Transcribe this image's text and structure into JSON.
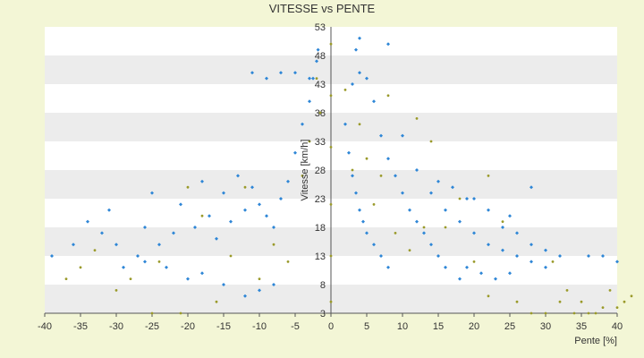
{
  "chart_data": {
    "type": "scatter",
    "title": "VITESSE vs PENTE",
    "xlabel": "Pente [%]",
    "ylabel": "Vitesse [km/h]",
    "xlim": [
      -40,
      40
    ],
    "ylim": [
      3,
      53
    ],
    "xticks": [
      "-40",
      "-35",
      "-30",
      "-25",
      "-20",
      "-15",
      "-10",
      "-5",
      "0",
      "5",
      "10",
      "15",
      "20",
      "25",
      "30",
      "35",
      "40"
    ],
    "yticks": [
      "3",
      "8",
      "13",
      "18",
      "23",
      "28",
      "33",
      "38",
      "43",
      "48",
      "53"
    ],
    "grid": "horizontal alternating bands",
    "legend": "none",
    "colors": {
      "series_main": "#2e86d6",
      "series_sparse": "#9a9a2a",
      "band": "#ececec",
      "plot_bg": "#ffffff",
      "axis": "#555555"
    },
    "series": [
      {
        "marker": "diamond",
        "color": "#2e86d6",
        "points": [
          [
            -39,
            13
          ],
          [
            -36,
            15
          ],
          [
            -34,
            19
          ],
          [
            -32,
            17
          ],
          [
            -31,
            21
          ],
          [
            -30,
            15
          ],
          [
            -29,
            11
          ],
          [
            -27,
            13
          ],
          [
            -26,
            18
          ],
          [
            -25,
            24
          ],
          [
            -24,
            15
          ],
          [
            -22,
            17
          ],
          [
            -21,
            22
          ],
          [
            -19,
            18
          ],
          [
            -18,
            26
          ],
          [
            -17,
            20
          ],
          [
            -16,
            16
          ],
          [
            -15,
            24
          ],
          [
            -14,
            19
          ],
          [
            -13,
            27
          ],
          [
            -12,
            21
          ],
          [
            -11,
            25
          ],
          [
            -10,
            22
          ],
          [
            -9,
            20
          ],
          [
            -8,
            18
          ],
          [
            -7,
            23
          ],
          [
            -6,
            26
          ],
          [
            -5,
            31
          ],
          [
            -4,
            36
          ],
          [
            -3,
            40
          ],
          [
            -2.5,
            44
          ],
          [
            -2,
            47
          ],
          [
            -1.8,
            49
          ],
          [
            -11,
            45
          ],
          [
            -9,
            44
          ],
          [
            -7,
            45
          ],
          [
            -5,
            45
          ],
          [
            -3,
            44
          ],
          [
            -8,
            8
          ],
          [
            -10,
            7
          ],
          [
            -12,
            6
          ],
          [
            -15,
            8
          ],
          [
            -18,
            10
          ],
          [
            -20,
            9
          ],
          [
            -23,
            11
          ],
          [
            -26,
            12
          ],
          [
            2,
            36
          ],
          [
            2.5,
            31
          ],
          [
            3,
            27
          ],
          [
            3.5,
            24
          ],
          [
            4,
            21
          ],
          [
            4.5,
            19
          ],
          [
            5,
            17
          ],
          [
            6,
            15
          ],
          [
            7,
            13
          ],
          [
            8,
            11
          ],
          [
            3,
            43
          ],
          [
            3.5,
            49
          ],
          [
            4,
            45
          ],
          [
            5,
            44
          ],
          [
            6,
            40
          ],
          [
            7,
            34
          ],
          [
            8,
            30
          ],
          [
            9,
            27
          ],
          [
            10,
            24
          ],
          [
            11,
            21
          ],
          [
            12,
            19
          ],
          [
            13,
            17
          ],
          [
            14,
            15
          ],
          [
            15,
            13
          ],
          [
            16,
            11
          ],
          [
            18,
            9
          ],
          [
            10,
            34
          ],
          [
            12,
            28
          ],
          [
            14,
            24
          ],
          [
            16,
            21
          ],
          [
            18,
            19
          ],
          [
            20,
            17
          ],
          [
            22,
            15
          ],
          [
            24,
            14
          ],
          [
            26,
            13
          ],
          [
            28,
            12
          ],
          [
            30,
            11
          ],
          [
            20,
            23
          ],
          [
            22,
            21
          ],
          [
            24,
            18
          ],
          [
            26,
            17
          ],
          [
            28,
            15
          ],
          [
            30,
            14
          ],
          [
            32,
            13
          ],
          [
            36,
            13
          ],
          [
            38,
            13
          ],
          [
            40,
            12
          ],
          [
            8,
            50
          ],
          [
            4,
            51
          ],
          [
            15,
            26
          ],
          [
            17,
            25
          ],
          [
            19,
            23
          ],
          [
            28,
            25
          ],
          [
            25,
            20
          ],
          [
            19,
            11
          ],
          [
            21,
            10
          ],
          [
            23,
            9
          ],
          [
            25,
            10
          ]
        ]
      },
      {
        "marker": "dot",
        "color": "#9a9a2a",
        "points": [
          [
            -37,
            9
          ],
          [
            -35,
            11
          ],
          [
            -33,
            14
          ],
          [
            -30,
            7
          ],
          [
            -28,
            9
          ],
          [
            -25,
            3
          ],
          [
            -24,
            12
          ],
          [
            -21,
            3
          ],
          [
            -20,
            25
          ],
          [
            -18,
            20
          ],
          [
            -16,
            5
          ],
          [
            -14,
            13
          ],
          [
            -12,
            25
          ],
          [
            -10,
            9
          ],
          [
            -8,
            15
          ],
          [
            -6,
            12
          ],
          [
            -4,
            27
          ],
          [
            -3,
            33
          ],
          [
            -2,
            44
          ],
          [
            -1.5,
            38
          ],
          [
            0,
            5
          ],
          [
            0,
            13
          ],
          [
            0,
            22
          ],
          [
            0,
            32
          ],
          [
            0,
            41
          ],
          [
            0,
            50
          ],
          [
            2,
            42
          ],
          [
            3,
            28
          ],
          [
            4,
            36
          ],
          [
            5,
            30
          ],
          [
            6,
            22
          ],
          [
            7,
            27
          ],
          [
            9,
            17
          ],
          [
            11,
            14
          ],
          [
            12,
            37
          ],
          [
            13,
            18
          ],
          [
            16,
            18
          ],
          [
            18,
            23
          ],
          [
            20,
            12
          ],
          [
            22,
            6
          ],
          [
            24,
            19
          ],
          [
            26,
            5
          ],
          [
            28,
            3
          ],
          [
            30,
            3
          ],
          [
            32,
            5
          ],
          [
            34,
            3
          ],
          [
            36,
            3
          ],
          [
            38,
            4
          ],
          [
            39,
            7
          ],
          [
            40,
            4
          ],
          [
            41,
            5
          ],
          [
            42,
            6
          ],
          [
            31,
            12
          ],
          [
            33,
            7
          ],
          [
            35,
            5
          ],
          [
            37,
            3
          ],
          [
            22,
            27
          ],
          [
            14,
            33
          ],
          [
            8,
            41
          ]
        ]
      }
    ]
  }
}
